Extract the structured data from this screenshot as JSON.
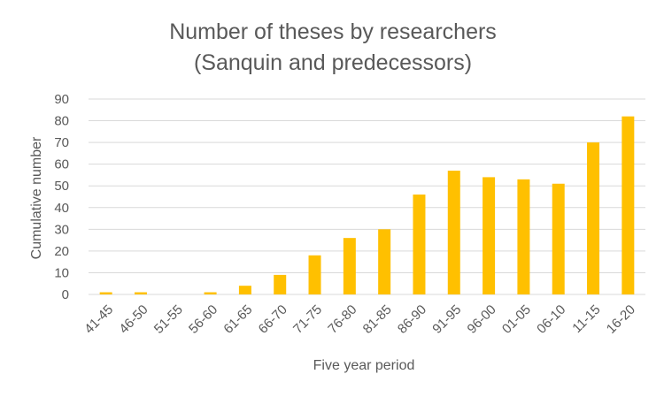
{
  "chart_data": {
    "type": "bar",
    "title_line1": "Number of theses by researchers",
    "title_line2": "(Sanquin and predecessors)",
    "xlabel": "Five year period",
    "ylabel": "Cumulative number",
    "categories": [
      "41-45",
      "46-50",
      "51-55",
      "56-60",
      "61-65",
      "66-70",
      "71-75",
      "76-80",
      "81-85",
      "86-90",
      "91-95",
      "96-00",
      "01-05",
      "06-10",
      "11-15",
      "16-20"
    ],
    "values": [
      1,
      1,
      0,
      1,
      4,
      9,
      18,
      26,
      30,
      46,
      57,
      54,
      53,
      51,
      70,
      82
    ],
    "ylim": [
      0,
      90
    ],
    "yticks": [
      0,
      10,
      20,
      30,
      40,
      50,
      60,
      70,
      80,
      90
    ],
    "grid": true,
    "legend": "none",
    "bar_color": "#ffc000"
  }
}
